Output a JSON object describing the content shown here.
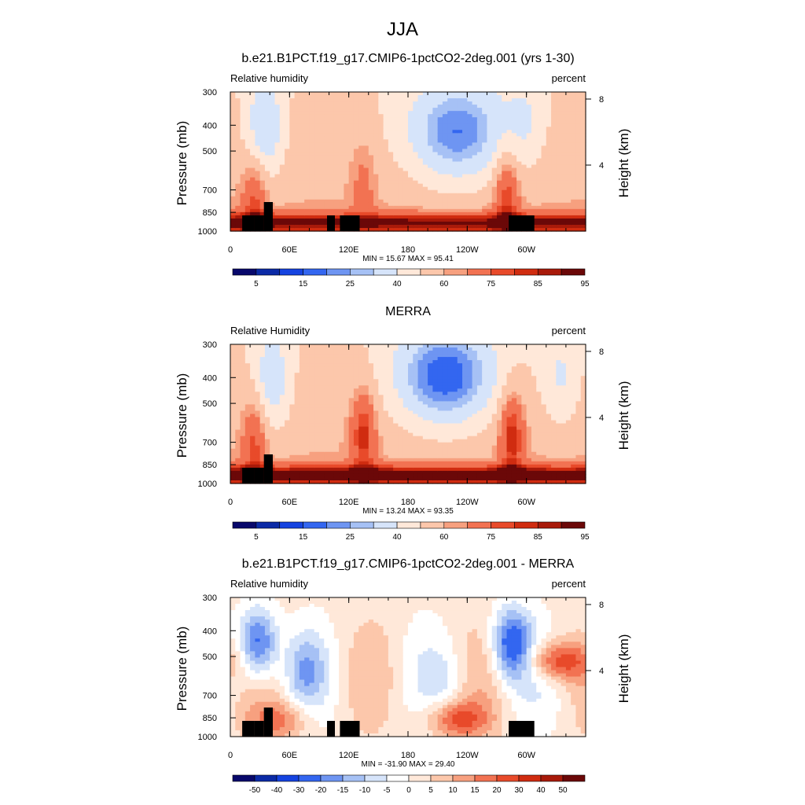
{
  "figure_title": "JJA",
  "colors": {
    "rh_palette": [
      "#08086b",
      "#0b2aa6",
      "#1543e0",
      "#3366f0",
      "#6e95f2",
      "#a6c1f5",
      "#d6e4fa",
      "#ffe8d9",
      "#fcc7ab",
      "#f7a07f",
      "#f27252",
      "#e84a2a",
      "#d02c10",
      "#a81a0a",
      "#6b0808"
    ],
    "diff_palette": [
      "#08086b",
      "#0b2aa6",
      "#1543e0",
      "#3366f0",
      "#6e95f2",
      "#a6c1f5",
      "#d6e4fa",
      "#ffffff",
      "#ffe8d9",
      "#fcc7ab",
      "#f7a07f",
      "#f27252",
      "#e84a2a",
      "#d02c10",
      "#a81a0a",
      "#6b0808"
    ],
    "topography": "#000000"
  },
  "chart_data": [
    {
      "type": "heatmap",
      "title": "b.e21.B1PCT.f19_g17.CMIP6-1pctCO2-2deg.001 (yrs 1-30)",
      "left_label": "Relative humidity",
      "right_label": "percent",
      "ylabel": "Pressure (mb)",
      "ylabel_right": "Height (km)",
      "x_ticks": [
        "0",
        "60E",
        "120E",
        "180",
        "120W",
        "60W"
      ],
      "y_ticks": [
        "300",
        "400",
        "500",
        "700",
        "850",
        "1000"
      ],
      "y_right_ticks": [
        "8",
        "4"
      ],
      "stats": "MIN = 15.67  MAX = 95.41",
      "colorbar_labels": [
        "5",
        "15",
        "25",
        "40",
        "60",
        "75",
        "85",
        "95"
      ],
      "fields": {
        "dry_cores": [
          {
            "lon": 35,
            "p": 420,
            "value": 30
          },
          {
            "lon": 230,
            "p": 430,
            "value": 20
          },
          {
            "lon": 300,
            "p": 390,
            "value": 45
          }
        ],
        "moist_plumes": [
          {
            "lon": 25,
            "p": 760,
            "value": 75
          },
          {
            "lon": 135,
            "p": 640,
            "value": 65
          },
          {
            "lon": 280,
            "p": 720,
            "value": 78
          }
        ],
        "boundary_layer_value": 87
      }
    },
    {
      "type": "heatmap",
      "title": "MERRA",
      "left_label": "Relative Humidity",
      "right_label": "percent",
      "ylabel": "Pressure (mb)",
      "ylabel_right": "Height (km)",
      "x_ticks": [
        "0",
        "60E",
        "120E",
        "180",
        "120W",
        "60W"
      ],
      "y_ticks": [
        "300",
        "400",
        "500",
        "700",
        "850",
        "1000"
      ],
      "y_right_ticks": [
        "8",
        "4"
      ],
      "stats": "MIN = 13.24  MAX = 93.35",
      "colorbar_labels": [
        "5",
        "15",
        "25",
        "40",
        "60",
        "75",
        "85",
        "95"
      ],
      "fields": {
        "dry_cores": [
          {
            "lon": 42,
            "p": 420,
            "value": 33
          },
          {
            "lon": 218,
            "p": 400,
            "value": 16
          },
          {
            "lon": 335,
            "p": 410,
            "value": 40
          }
        ],
        "moist_plumes": [
          {
            "lon": 25,
            "p": 680,
            "value": 75
          },
          {
            "lon": 135,
            "p": 640,
            "value": 80
          },
          {
            "lon": 285,
            "p": 640,
            "value": 82
          }
        ],
        "boundary_layer_value": 90
      }
    },
    {
      "type": "heatmap",
      "title": "b.e21.B1PCT.f19_g17.CMIP6-1pctCO2-2deg.001 - MERRA",
      "left_label": "Relative humidity",
      "right_label": "percent",
      "ylabel": "Pressure (mb)",
      "ylabel_right": "Height (km)",
      "x_ticks": [
        "0",
        "60E",
        "120E",
        "180",
        "120W",
        "60W"
      ],
      "y_ticks": [
        "300",
        "400",
        "500",
        "700",
        "850",
        "1000"
      ],
      "y_right_ticks": [
        "8",
        "4"
      ],
      "stats": "MIN = -31.90  MAX = 29.40",
      "colorbar_labels": [
        "-50",
        "-40",
        "-30",
        "-20",
        "-15",
        "-10",
        "-5",
        "0",
        "5",
        "10",
        "15",
        "20",
        "30",
        "40",
        "50"
      ],
      "fields": {
        "dry_cores": [
          {
            "lon": 28,
            "p": 450,
            "value": -28
          },
          {
            "lon": 285,
            "p": 450,
            "value": -28
          },
          {
            "lon": 75,
            "p": 560,
            "value": -12
          },
          {
            "lon": 220,
            "p": 620,
            "value": -5
          }
        ],
        "moist_plumes": [
          {
            "lon": 332,
            "p": 520,
            "value": 22
          },
          {
            "lon": 230,
            "p": 860,
            "value": 20
          },
          {
            "lon": 50,
            "p": 870,
            "value": 14
          }
        ],
        "boundary_layer_value": 4
      }
    }
  ]
}
